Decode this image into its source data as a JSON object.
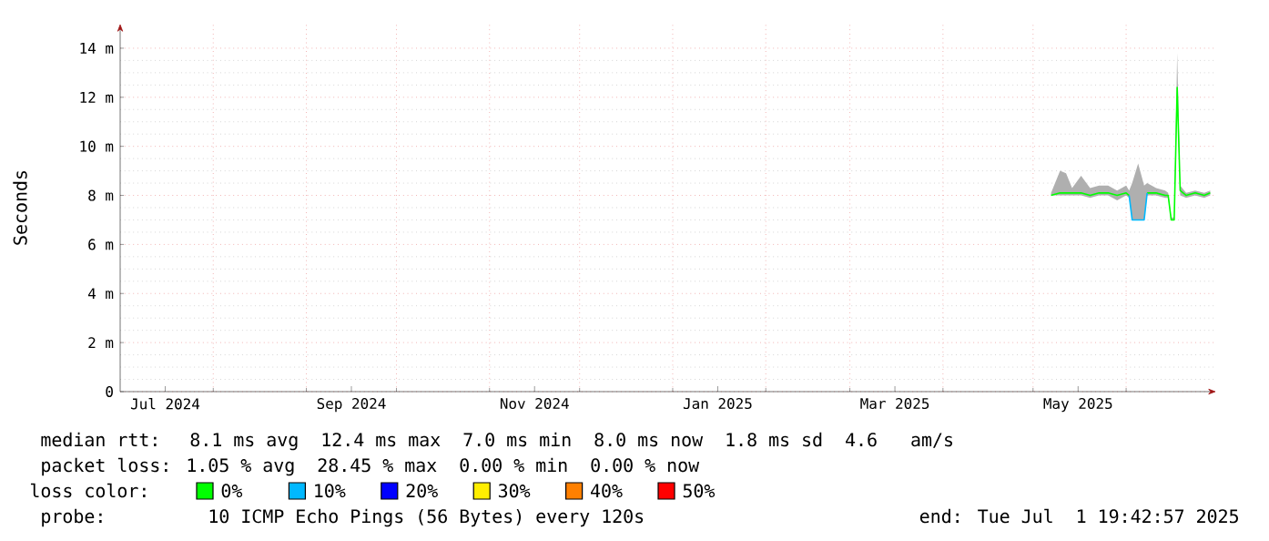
{
  "chart_data": {
    "type": "line",
    "ylabel": "Seconds",
    "legend_title": "loss color:",
    "annotations": [
      "median rtt:  8.1 ms avg  12.4 ms max  7.0 ms min  8.0 ms now  1.8 ms sd  4.6   am/s",
      "packet loss: 1.05 % avg  28.45 % max  0.00 % min  0.00 % now",
      "probe:       10 ICMP Echo Pings (56 Bytes) every 120s",
      "end: Tue Jul  1 19:42:57 2025"
    ],
    "xlim": [
      "2024-07-01",
      "2025-07-01"
    ],
    "xticks": [
      {
        "value": "2024-08-01",
        "label": null
      },
      {
        "value": "2024-09-01",
        "label": null
      },
      {
        "value": "2024-10-01",
        "label": null
      },
      {
        "value": "2024-11-01",
        "label": null
      },
      {
        "value": "2024-12-01",
        "label": null
      },
      {
        "value": "2025-01-01",
        "label": null
      },
      {
        "value": "2025-02-01",
        "label": null
      },
      {
        "value": "2025-03-01",
        "label": null
      },
      {
        "value": "2025-04-01",
        "label": null
      },
      {
        "value": "2025-05-01",
        "label": null
      },
      {
        "value": "2025-06-01",
        "label": null
      },
      {
        "value": "2024-07-16",
        "label": "Jul 2024"
      },
      {
        "value": "2024-09-16",
        "label": "Sep 2024"
      },
      {
        "value": "2024-11-16",
        "label": "Nov 2024"
      },
      {
        "value": "2025-01-16",
        "label": "Jan 2025"
      },
      {
        "value": "2025-03-16",
        "label": "Mar 2025"
      },
      {
        "value": "2025-05-16",
        "label": "May 2025"
      }
    ],
    "ylim": [
      0,
      15
    ],
    "yticks": [
      0,
      {
        "value": 2,
        "label": "2 m"
      },
      {
        "value": 4,
        "label": "4 m"
      },
      {
        "value": 6,
        "label": "6 m"
      },
      {
        "value": 8,
        "label": "8 m"
      },
      {
        "value": 10,
        "label": "10 m"
      },
      {
        "value": 12,
        "label": "12 m"
      },
      {
        "value": 14,
        "label": "14 m"
      }
    ],
    "grid": true,
    "legend": "bottom",
    "series": [
      {
        "name": "0%",
        "color": "#00ff00",
        "x": [
          "2025-05-07",
          "2025-05-10",
          "2025-05-12",
          "2025-05-14",
          "2025-05-17",
          "2025-05-20",
          "2025-05-23",
          "2025-05-26",
          "2025-05-29",
          "2025-06-01",
          "2025-06-02",
          "2025-06-03",
          "2025-06-05",
          "2025-06-07",
          "2025-06-08",
          "2025-06-11",
          "2025-06-14",
          "2025-06-15",
          "2025-06-16",
          "2025-06-17",
          "2025-06-18",
          "2025-06-19",
          "2025-06-21",
          "2025-06-24",
          "2025-06-27",
          "2025-06-29"
        ],
        "values": [
          8.0,
          8.1,
          8.1,
          8.1,
          8.1,
          8.0,
          8.1,
          8.1,
          8.0,
          8.1,
          8.0,
          null,
          null,
          null,
          8.1,
          8.1,
          8.0,
          8.0,
          7.0,
          7.0,
          12.4,
          8.2,
          8.0,
          8.1,
          8.0,
          8.1
        ],
        "lower": [
          8.0,
          8.0,
          8.0,
          8.0,
          8.0,
          7.9,
          8.0,
          8.0,
          7.8,
          8.0,
          7.9,
          7.0,
          7.0,
          7.0,
          8.0,
          8.0,
          7.9,
          7.9,
          7.0,
          7.0,
          11.8,
          8.0,
          7.9,
          8.0,
          7.9,
          8.0
        ],
        "upper": [
          8.1,
          9.0,
          8.9,
          8.3,
          8.8,
          8.3,
          8.4,
          8.4,
          8.2,
          8.4,
          8.2,
          8.5,
          9.3,
          8.4,
          8.5,
          8.3,
          8.2,
          8.1,
          7.1,
          7.1,
          13.8,
          8.4,
          8.1,
          8.2,
          8.1,
          8.2
        ]
      },
      {
        "name": "10%",
        "color": "#00b8ff",
        "x": [
          "2025-06-02",
          "2025-06-03",
          "2025-06-05",
          "2025-06-07",
          "2025-06-08"
        ],
        "values": [
          8.0,
          7.0,
          7.0,
          7.0,
          8.1
        ]
      },
      {
        "name": "20%",
        "color": "#0000ff"
      },
      {
        "name": "30%",
        "color": "#ffee00"
      },
      {
        "name": "40%",
        "color": "#ff8000"
      },
      {
        "name": "50%",
        "color": "#ff0000"
      }
    ]
  }
}
